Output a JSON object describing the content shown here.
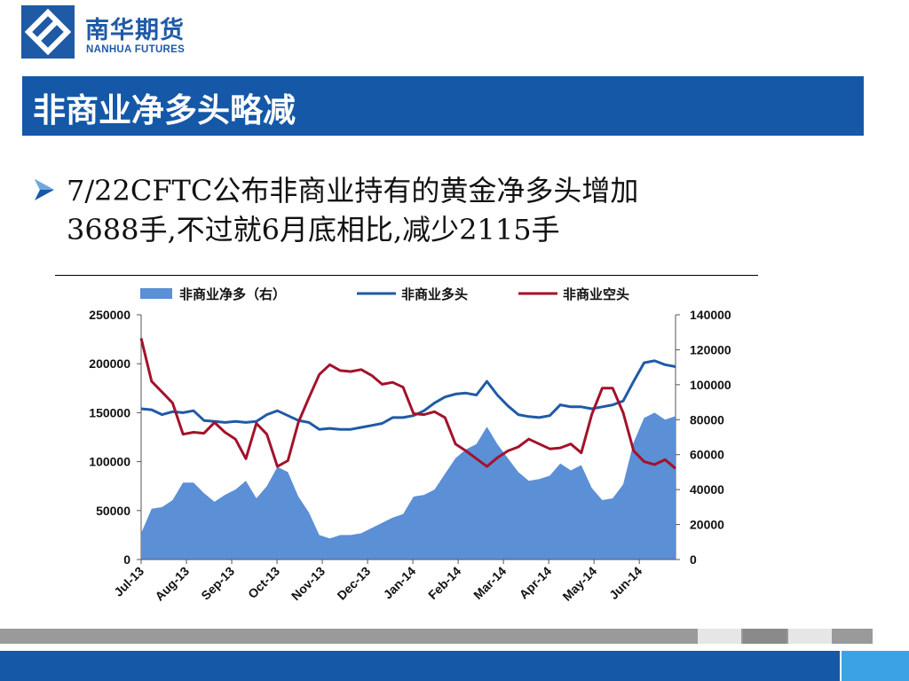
{
  "brand": {
    "cn": "南华期货",
    "en": "NANHUA FUTURES",
    "color": "#1f5aa6"
  },
  "slide": {
    "title": "非商业净多头略减",
    "bullet_line1": "7/22CFTC公布非商业持有的黄金净多头增加",
    "bullet_line2": "3688手,不过就6月底相比,减少2115手"
  },
  "colors": {
    "title_bar": "#1558a7",
    "area": "#5b8fd6",
    "long_line": "#1f5aa6",
    "short_line": "#a3122a"
  },
  "chart_data": {
    "type": "line",
    "legend": [
      "非商业净多（右）",
      "非商业多头",
      "非商业空头"
    ],
    "legend_position": "top",
    "x_ticks": [
      "Jul-13",
      "Aug-13",
      "Sep-13",
      "Oct-13",
      "Nov-13",
      "Dec-13",
      "Jan-14",
      "Feb-14",
      "Mar-14",
      "Apr-14",
      "May-14",
      "Jun-14"
    ],
    "y_left": {
      "min": 0,
      "max": 250000,
      "ticks": [
        "0",
        "50000",
        "100000",
        "150000",
        "200000",
        "250000"
      ]
    },
    "y_right": {
      "min": 0,
      "max": 140000,
      "ticks": [
        "0",
        "20000",
        "40000",
        "60000",
        "80000",
        "100000",
        "120000",
        "140000"
      ]
    },
    "series": [
      {
        "name": "非商业净多（右）",
        "axis": "right",
        "kind": "area",
        "values": [
          15000,
          29000,
          30000,
          34000,
          44000,
          44000,
          38000,
          33000,
          37000,
          40000,
          45000,
          35000,
          42000,
          53000,
          50000,
          36000,
          27000,
          14000,
          12000,
          14000,
          14000,
          15000,
          18000,
          21000,
          24000,
          26000,
          36000,
          37000,
          40000,
          49000,
          58000,
          63000,
          66000,
          76000,
          66000,
          58000,
          50000,
          45000,
          46000,
          48000,
          55000,
          51000,
          54000,
          41000,
          34000,
          35000,
          43000,
          67000,
          81000,
          84000,
          80000,
          82000
        ]
      },
      {
        "name": "非商业多头",
        "axis": "left",
        "kind": "line",
        "values": [
          154000,
          153000,
          148000,
          151000,
          150000,
          152000,
          142000,
          141000,
          140000,
          141000,
          140000,
          141000,
          148000,
          152000,
          147000,
          142000,
          140000,
          133000,
          134000,
          133000,
          133000,
          135000,
          137000,
          139000,
          145000,
          145000,
          147000,
          152000,
          160000,
          166000,
          169000,
          170000,
          168000,
          182000,
          168000,
          157000,
          148000,
          146000,
          145000,
          147000,
          158000,
          156000,
          156000,
          154000,
          156000,
          158000,
          162000,
          182000,
          201000,
          203000,
          199000,
          197000
        ]
      },
      {
        "name": "非商业空头",
        "axis": "left",
        "kind": "line",
        "values": [
          226000,
          182000,
          171000,
          160000,
          128000,
          130000,
          129000,
          140000,
          130000,
          123000,
          103000,
          139000,
          128000,
          95000,
          101000,
          140000,
          165000,
          189000,
          199000,
          193000,
          192000,
          194000,
          188000,
          179000,
          181000,
          176000,
          149000,
          148000,
          151000,
          145000,
          118000,
          111000,
          103000,
          95000,
          104000,
          111000,
          115000,
          123000,
          118000,
          113000,
          114000,
          118000,
          109000,
          148000,
          175000,
          175000,
          150000,
          111000,
          100000,
          97000,
          102000,
          93000
        ]
      }
    ]
  }
}
